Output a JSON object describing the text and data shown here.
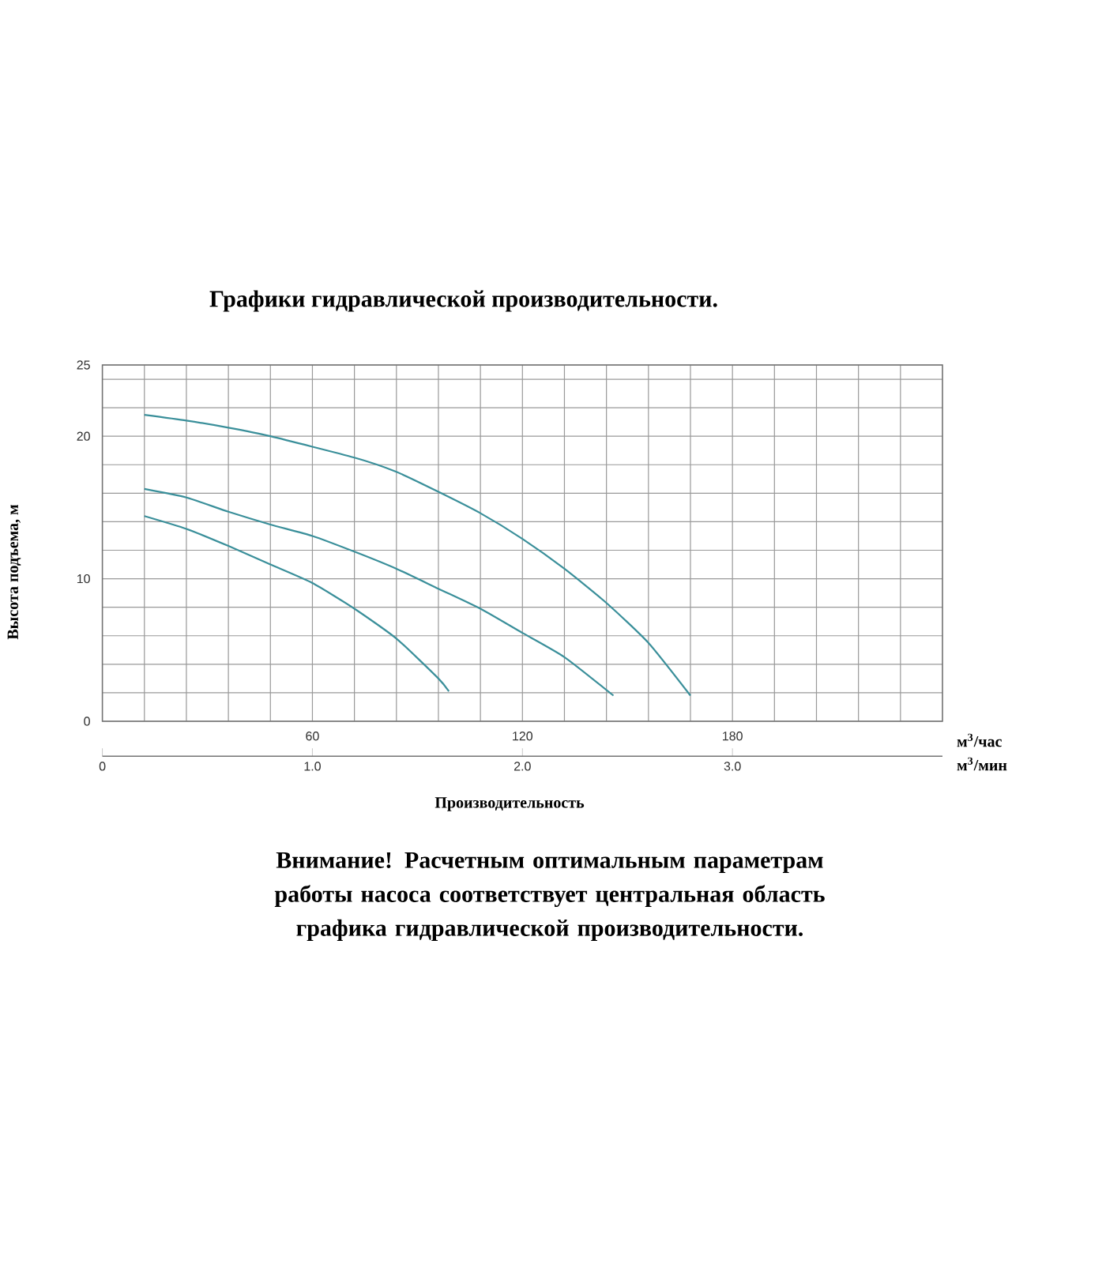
{
  "chart_data": {
    "type": "line",
    "title": "Графики гидравлической производительности.",
    "ylabel": "Высота подъема, м",
    "xlabel": "м$^{3}$/час",
    "x2label": "м$^{3}$/мин",
    "annotations": [
      "Производительность",
      "Внимание! Расчетным оптимальным параметрам работы насоса соответствует центральная область графика гидравлической производительности."
    ],
    "series": [
      {
        "color": "#3a8f9a",
        "x": [
          12,
          24,
          36,
          48,
          72,
          84,
          96,
          108,
          120,
          132,
          144,
          156,
          168
        ],
        "values": [
          21.5,
          21.1,
          20.6,
          20.0,
          18.5,
          17.5,
          16.1,
          14.6,
          12.8,
          10.7,
          8.3,
          5.5,
          1.8
        ]
      },
      {
        "color": "#3a8f9a",
        "x": [
          12,
          24,
          36,
          48,
          60,
          72,
          84,
          96,
          108,
          120,
          132,
          146
        ],
        "values": [
          16.3,
          15.7,
          14.7,
          13.8,
          13.0,
          11.9,
          10.7,
          9.3,
          7.9,
          6.2,
          4.5,
          1.8
        ]
      },
      {
        "color": "#3a8f9a",
        "x": [
          12,
          24,
          36,
          48,
          60,
          72,
          84,
          96,
          99
        ],
        "values": [
          14.4,
          13.5,
          12.3,
          11.0,
          9.7,
          7.9,
          5.8,
          3.0,
          2.1
        ]
      }
    ],
    "xlim": [
      0,
      240
    ],
    "xticks": [
      {
        "value": 12,
        "label": null
      },
      {
        "value": 24,
        "label": null
      },
      {
        "value": 36,
        "label": null
      },
      {
        "value": 48,
        "label": null
      },
      60,
      {
        "value": 72,
        "label": null
      },
      {
        "value": 84,
        "label": null
      },
      {
        "value": 96,
        "label": null
      },
      {
        "value": 108,
        "label": null
      },
      120,
      {
        "value": 132,
        "label": null
      },
      {
        "value": 144,
        "label": null
      },
      {
        "value": 156,
        "label": null
      },
      {
        "value": 168,
        "label": null
      },
      180,
      {
        "value": 192,
        "label": null
      },
      {
        "value": 204,
        "label": null
      },
      {
        "value": 216,
        "label": null
      },
      {
        "value": 228,
        "label": null
      }
    ],
    "ylim": [
      0,
      25
    ],
    "yticks": [
      0,
      {
        "value": 2,
        "label": null
      },
      {
        "value": 4,
        "label": null
      },
      {
        "value": 6,
        "label": null
      },
      {
        "value": 8,
        "label": null
      },
      10,
      {
        "value": 12,
        "label": null
      },
      {
        "value": 14,
        "label": null
      },
      {
        "value": 16,
        "label": null
      },
      {
        "value": 18,
        "label": null
      },
      20,
      {
        "value": 22,
        "label": null
      },
      {
        "value": 24,
        "label": null
      },
      25
    ],
    "x2lim": [
      0,
      4
    ],
    "x2ticks": [
      0,
      {
        "value": 1,
        "label": "1.0"
      },
      {
        "value": 2,
        "label": "2.0"
      },
      {
        "value": 3,
        "label": "3.0"
      }
    ],
    "grid": true
  }
}
